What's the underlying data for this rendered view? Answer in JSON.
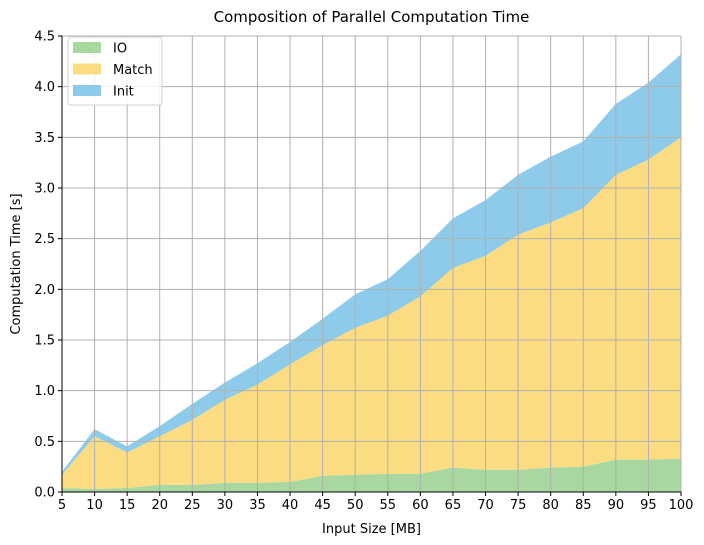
{
  "chart_data": {
    "type": "area",
    "stacked": true,
    "title": "Composition of Parallel Computation Time",
    "xlabel": "Input Size [MB]",
    "ylabel": "Computation Time [s]",
    "x": [
      5,
      10,
      15,
      20,
      25,
      30,
      35,
      40,
      45,
      50,
      55,
      60,
      65,
      70,
      75,
      80,
      85,
      90,
      95,
      100
    ],
    "xlim": [
      5,
      100
    ],
    "ylim": [
      0,
      4.5
    ],
    "xticks": [
      "5",
      "10",
      "15",
      "20",
      "25",
      "30",
      "35",
      "40",
      "45",
      "50",
      "55",
      "60",
      "65",
      "70",
      "75",
      "80",
      "85",
      "90",
      "95",
      "100"
    ],
    "yticks": [
      "0.0",
      "0.5",
      "1.0",
      "1.5",
      "2.0",
      "2.5",
      "3.0",
      "3.5",
      "4.0",
      "4.5"
    ],
    "grid": true,
    "legend": "top-left",
    "series": [
      {
        "name": "IO",
        "color": "#a8d8a0",
        "values": [
          0.04,
          0.03,
          0.04,
          0.07,
          0.07,
          0.09,
          0.09,
          0.1,
          0.16,
          0.17,
          0.18,
          0.18,
          0.24,
          0.22,
          0.22,
          0.24,
          0.25,
          0.32,
          0.32,
          0.33
        ]
      },
      {
        "name": "Match",
        "color": "#fcdc82",
        "values": [
          0.13,
          0.52,
          0.35,
          0.48,
          0.64,
          0.82,
          0.97,
          1.16,
          1.29,
          1.45,
          1.56,
          1.75,
          1.97,
          2.11,
          2.32,
          2.42,
          2.55,
          2.81,
          2.96,
          3.17
        ]
      },
      {
        "name": "Init",
        "color": "#8ecbea",
        "values": [
          0.03,
          0.07,
          0.06,
          0.1,
          0.16,
          0.17,
          0.21,
          0.22,
          0.26,
          0.33,
          0.36,
          0.45,
          0.49,
          0.55,
          0.59,
          0.65,
          0.66,
          0.7,
          0.76,
          0.82
        ]
      }
    ]
  }
}
